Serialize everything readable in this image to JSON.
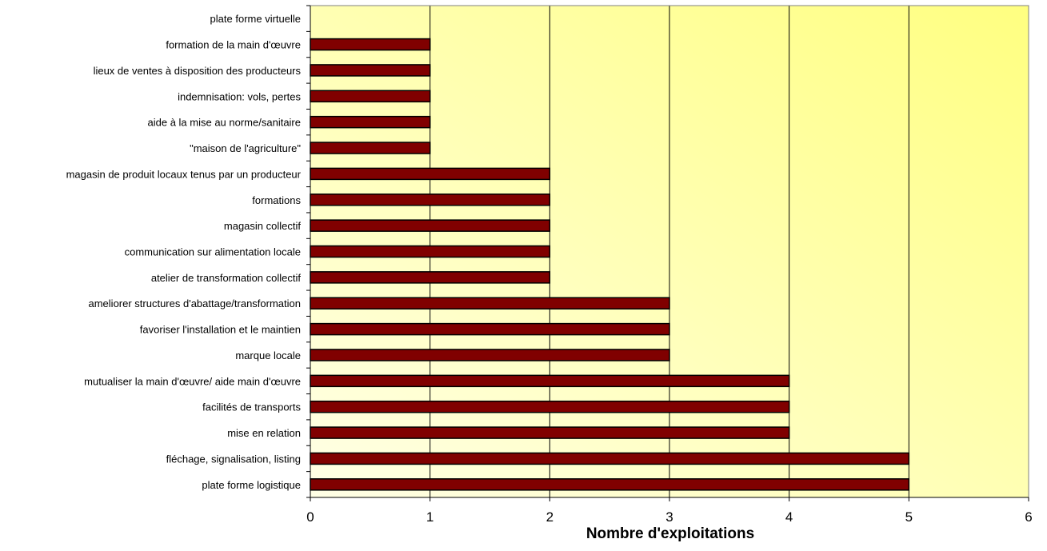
{
  "chart_data": {
    "type": "bar",
    "orientation": "horizontal",
    "xlabel": "Nombre d'exploitations",
    "ylabel": "",
    "title": "",
    "xlim": [
      0,
      6
    ],
    "xticks": [
      "0",
      "1",
      "2",
      "3",
      "4",
      "5",
      "6"
    ],
    "grid": true,
    "legend": "none",
    "categories": [
      "plate forme virtuelle",
      "formation de la main d'œuvre",
      "lieux de ventes à disposition des producteurs",
      "indemnisation: vols, pertes",
      "aide à la mise au norme/sanitaire",
      "\"maison de l'agriculture\"",
      "magasin de produit locaux tenus par un producteur",
      "formations",
      "magasin collectif",
      "communication sur alimentation locale",
      "atelier de transformation collectif",
      "ameliorer structures d'abattage/transformation",
      "favoriser l'installation et le maintien",
      "marque locale",
      "mutualiser la main d'œuvre/ aide main d'œuvre",
      "facilités de transports",
      "mise en relation",
      "fléchage, signalisation, listing",
      "plate forme logistique"
    ],
    "values": [
      0,
      1,
      1,
      1,
      1,
      1,
      2,
      2,
      2,
      2,
      2,
      3,
      3,
      3,
      4,
      4,
      4,
      5,
      5
    ],
    "colors": {
      "bar_fill": "#800000",
      "bar_stroke": "#000000",
      "plot_bg_top": "#ffff80",
      "plot_bg_bottom": "#ffffe6",
      "grid": "#000000"
    }
  }
}
